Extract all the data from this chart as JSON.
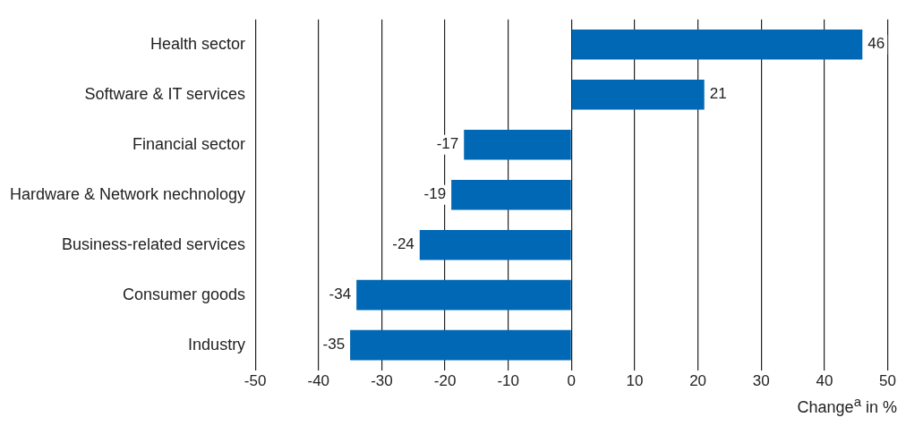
{
  "chart_data": {
    "type": "bar",
    "orientation": "horizontal",
    "xlabel": "Change$^{a}$ in %",
    "categories": [
      "Health sector",
      "Software & IT services",
      "Financial sector",
      "Hardware & Network nechnology",
      "Business-related services",
      "Consumer goods",
      "Industry"
    ],
    "values": [
      46,
      21,
      -17,
      -19,
      -24,
      -34,
      -35
    ],
    "color": "#0068b4",
    "xlim": [
      -50,
      50
    ],
    "xticks": [
      -50,
      -40,
      -30,
      -20,
      -10,
      0,
      10,
      20,
      30,
      40,
      50
    ],
    "grid": "x",
    "data_labels": true,
    "legend": false
  }
}
